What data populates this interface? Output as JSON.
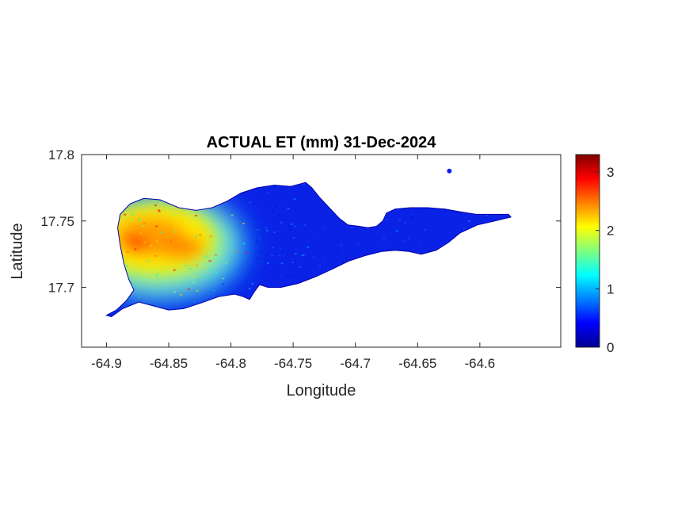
{
  "chart_data": {
    "type": "heatmap",
    "title": "ACTUAL ET (mm) 31-Dec-2024",
    "xlabel": "Longitude",
    "ylabel": "Latitude",
    "xlim": [
      -64.92,
      -64.535
    ],
    "ylim": [
      17.655,
      17.8
    ],
    "x_ticks": [
      -64.9,
      -64.85,
      -64.8,
      -64.75,
      -64.7,
      -64.65,
      -64.6
    ],
    "x_tick_labels": [
      "-64.9",
      "-64.85",
      "-64.8",
      "-64.75",
      "-64.7",
      "-64.65",
      "-64.6"
    ],
    "y_ticks": [
      17.7,
      17.75,
      17.8
    ],
    "y_tick_labels": [
      "17.7",
      "17.75",
      "17.8"
    ],
    "colorbar": {
      "colormap": "jet",
      "range": [
        0,
        3.3
      ],
      "ticks": [
        0,
        1,
        2,
        3
      ],
      "tick_labels": [
        "0",
        "1",
        "2",
        "3"
      ]
    },
    "grid": false,
    "region_outline_lonlat": [
      [
        -64.9,
        17.679
      ],
      [
        -64.892,
        17.683
      ],
      [
        -64.884,
        17.69
      ],
      [
        -64.878,
        17.698
      ],
      [
        -64.882,
        17.706
      ],
      [
        -64.886,
        17.718
      ],
      [
        -64.889,
        17.732
      ],
      [
        -64.891,
        17.745
      ],
      [
        -64.889,
        17.755
      ],
      [
        -64.881,
        17.763
      ],
      [
        -64.87,
        17.767
      ],
      [
        -64.857,
        17.766
      ],
      [
        -64.842,
        17.76
      ],
      [
        -64.828,
        17.758
      ],
      [
        -64.815,
        17.76
      ],
      [
        -64.803,
        17.765
      ],
      [
        -64.792,
        17.771
      ],
      [
        -64.779,
        17.775
      ],
      [
        -64.765,
        17.777
      ],
      [
        -64.752,
        17.776
      ],
      [
        -64.74,
        17.779
      ],
      [
        -64.735,
        17.775
      ],
      [
        -64.729,
        17.768
      ],
      [
        -64.72,
        17.759
      ],
      [
        -64.713,
        17.752
      ],
      [
        -64.706,
        17.747
      ],
      [
        -64.697,
        17.746
      ],
      [
        -64.69,
        17.745
      ],
      [
        -64.683,
        17.746
      ],
      [
        -64.678,
        17.75
      ],
      [
        -64.675,
        17.756
      ],
      [
        -64.668,
        17.759
      ],
      [
        -64.656,
        17.76
      ],
      [
        -64.642,
        17.76
      ],
      [
        -64.628,
        17.759
      ],
      [
        -64.616,
        17.757
      ],
      [
        -64.603,
        17.755
      ],
      [
        -64.589,
        17.755
      ],
      [
        -64.577,
        17.755
      ],
      [
        -64.575,
        17.753
      ],
      [
        -64.588,
        17.75
      ],
      [
        -64.602,
        17.747
      ],
      [
        -64.616,
        17.741
      ],
      [
        -64.625,
        17.734
      ],
      [
        -64.635,
        17.728
      ],
      [
        -64.647,
        17.725
      ],
      [
        -64.657,
        17.727
      ],
      [
        -64.668,
        17.728
      ],
      [
        -64.679,
        17.727
      ],
      [
        -64.692,
        17.724
      ],
      [
        -64.705,
        17.72
      ],
      [
        -64.718,
        17.714
      ],
      [
        -64.732,
        17.708
      ],
      [
        -64.746,
        17.703
      ],
      [
        -64.76,
        17.7
      ],
      [
        -64.77,
        17.7
      ],
      [
        -64.777,
        17.702
      ],
      [
        -64.781,
        17.697
      ],
      [
        -64.785,
        17.691
      ],
      [
        -64.79,
        17.693
      ],
      [
        -64.797,
        17.695
      ],
      [
        -64.81,
        17.693
      ],
      [
        -64.825,
        17.688
      ],
      [
        -64.838,
        17.684
      ],
      [
        -64.85,
        17.683
      ],
      [
        -64.862,
        17.686
      ],
      [
        -64.874,
        17.689
      ],
      [
        -64.887,
        17.684
      ],
      [
        -64.896,
        17.678
      ]
    ],
    "islet_lonlat": [
      -64.6245,
      17.7876
    ],
    "hotspot_lonlat": [
      -64.86,
      17.735
    ]
  }
}
